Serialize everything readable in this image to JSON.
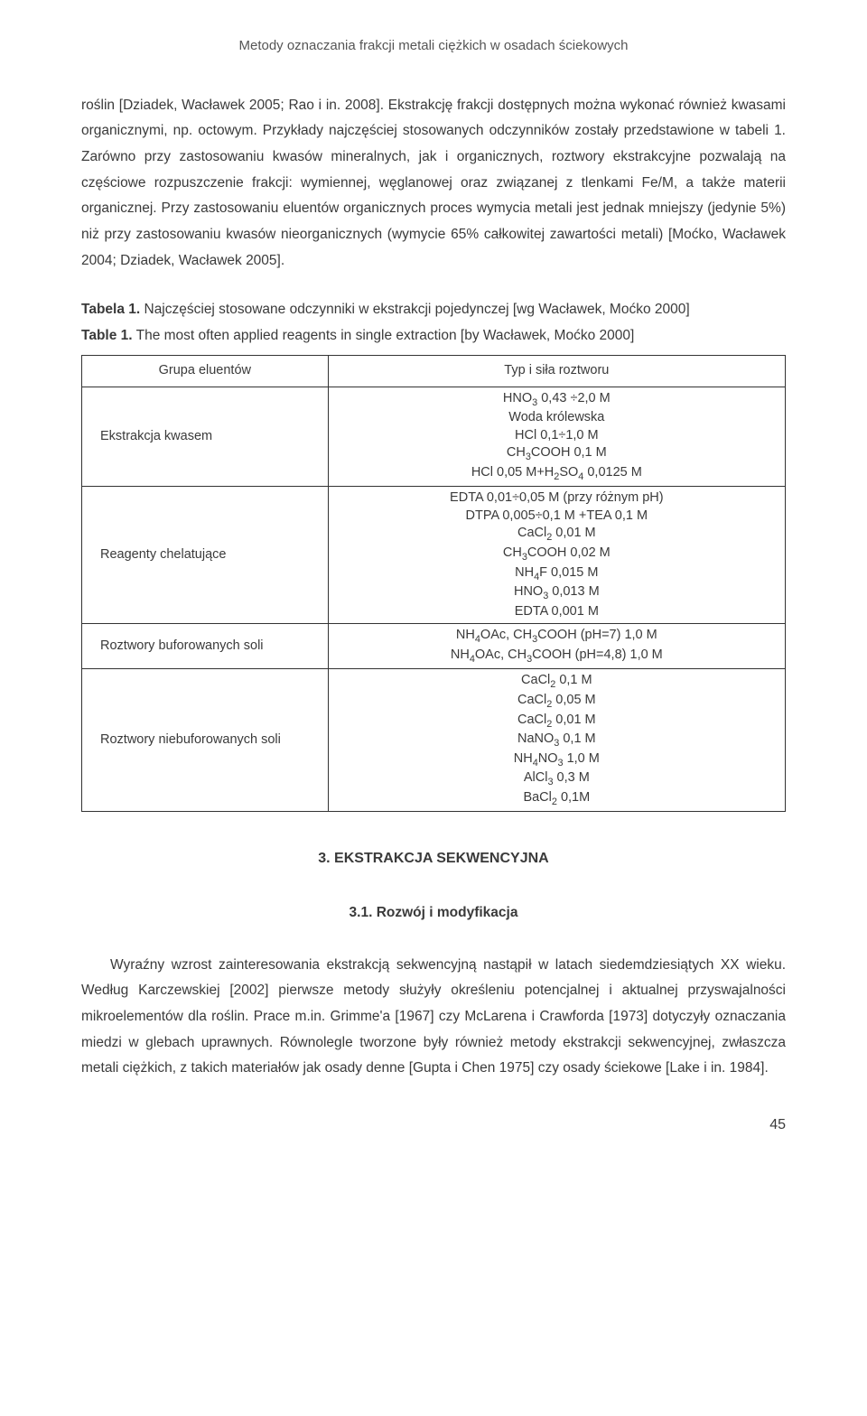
{
  "header": {
    "title": "Metody oznaczania frakcji metali ciężkich w osadach ściekowych"
  },
  "paragraph1": "roślin [Dziadek, Wacławek 2005; Rao i in. 2008]. Ekstrakcję frakcji dostępnych można wykonać również kwasami organicznymi, np. octowym. Przykłady najczęściej stosowanych odczynników zostały przedstawione w tabeli 1. Zarówno przy zastosowaniu kwasów mineralnych, jak i organicznych, roztwory ekstrakcyjne pozwalają na częściowe rozpuszczenie frakcji: wymiennej, węglanowej oraz związanej z tlenkami Fe/M, a także materii organicznej. Przy zastosowaniu eluentów organicznych proces wymycia metali jest jednak mniejszy (jedynie 5%) niż przy zastosowaniu kwasów nieorganicznych (wymycie 65% całkowitej zawartości metali) [Moćko, Wacławek 2004; Dziadek, Wacławek 2005].",
  "table": {
    "caption1_label": "Tabela 1.",
    "caption1_text": " Najczęściej stosowane odczynniki w ekstrakcji pojedynczej [wg Wacławek, Moćko 2000]",
    "caption2_label": "Table 1.",
    "caption2_text": " The most often applied reagents in single extraction [by Wacławek, Moćko 2000]",
    "header_col1": "Grupa eluentów",
    "header_col2": "Typ i siła roztworu",
    "rows": [
      {
        "label": "Ekstrakcja kwasem",
        "values_html": "HNO<sub>3</sub> 0,43 ÷2,0 M<br>Woda królewska<br>HCl 0,1÷1,0 M<br>CH<sub>3</sub>COOH 0,1 M<br>HCl 0,05 M+H<sub>2</sub>SO<sub>4</sub> 0,0125 M"
      },
      {
        "label": "Reagenty chelatujące",
        "values_html": "EDTA 0,01÷0,05 M (przy różnym pH)<br>DTPA 0,005÷0,1 M +TEA 0,1 M<br>CaCl<sub>2</sub> 0,01 M<br>CH<sub>3</sub>COOH 0,02 M<br>NH<sub>4</sub>F 0,015 M<br>HNO<sub>3</sub> 0,013 M<br>EDTA 0,001 M"
      },
      {
        "label": "Roztwory buforowanych soli",
        "values_html": "NH<sub>4</sub>OAc, CH<sub>3</sub>COOH (pH=7) 1,0 M<br>NH<sub>4</sub>OAc, CH<sub>3</sub>COOH (pH=4,8) 1,0 M"
      },
      {
        "label": "Roztwory niebuforowanych soli",
        "values_html": "CaCl<sub>2</sub> 0,1 M<br>CaCl<sub>2</sub> 0,05 M<br>CaCl<sub>2</sub> 0,01 M<br>NaNO<sub>3</sub> 0,1 M<br>NH<sub>4</sub>NO<sub>3</sub> 1,0 M<br>AlCl<sub>3</sub> 0,3 M<br>BaCl<sub>2</sub> 0,1M"
      }
    ]
  },
  "section": {
    "heading": "3. EKSTRAKCJA SEKWENCYJNA",
    "subheading": "3.1. Rozwój i modyfikacja"
  },
  "paragraph2": "Wyraźny wzrost zainteresowania ekstrakcją sekwencyjną nastąpił w latach siedemdziesiątych XX wieku. Według Karczewskiej [2002] pierwsze metody służyły określeniu potencjalnej i aktualnej przyswajalności mikroelementów dla roślin. Prace m.in. Grimme'a [1967] czy McLarena i Crawforda [1973] dotyczyły oznaczania miedzi w glebach uprawnych. Równolegle tworzone były również metody ekstrakcji sekwencyjnej, zwłaszcza metali ciężkich, z takich materiałów jak osady denne [Gupta i Chen 1975] czy osady ściekowe [Lake i in. 1984].",
  "page_number": "45"
}
